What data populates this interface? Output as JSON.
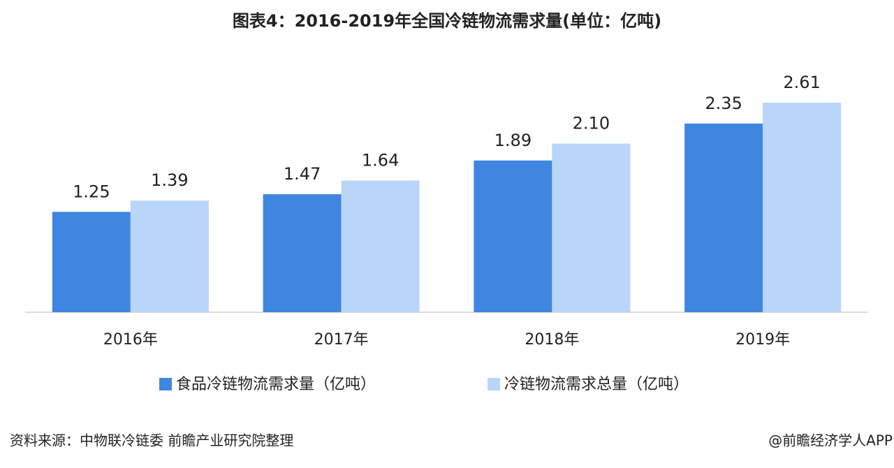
{
  "chart_data": {
    "type": "bar",
    "title": "图表4：2016-2019年全国冷链物流需求量(单位：亿吨)",
    "categories": [
      "2016年",
      "2017年",
      "2018年",
      "2019年"
    ],
    "series": [
      {
        "name": "食品冷链物流需求量（亿吨）",
        "color": "#3f86e0",
        "values": [
          1.25,
          1.47,
          1.89,
          2.35
        ]
      },
      {
        "name": "冷链物流需求总量（亿吨）",
        "color": "#b9d5f8",
        "values": [
          1.39,
          1.64,
          2.1,
          2.61
        ],
        "value_labels": [
          "1.39",
          "1.64",
          "2.10",
          "2.61"
        ]
      }
    ],
    "source": "资料来源：中物联冷链委 前瞻产业研究院整理",
    "credit": "@前瞻经济学人APP"
  }
}
